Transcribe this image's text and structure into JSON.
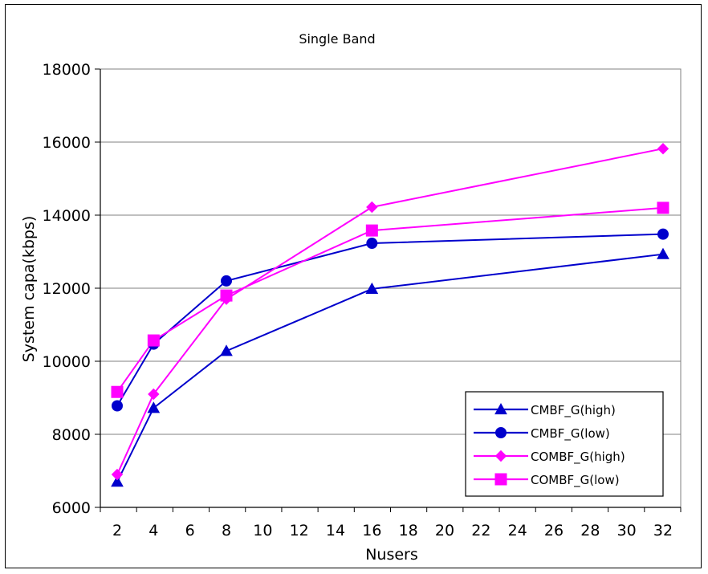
{
  "chart_data": {
    "type": "line",
    "title": "Single Band",
    "xlabel": "Nusers",
    "ylabel": "System capa(kbps)",
    "x": [
      2,
      4,
      8,
      16,
      32
    ],
    "xticks": [
      "2",
      "4",
      "6",
      "8",
      "10",
      "12",
      "14",
      "16",
      "18",
      "20",
      "22",
      "24",
      "26",
      "28",
      "30",
      "32"
    ],
    "yticks": [
      "6000",
      "8000",
      "10000",
      "12000",
      "14000",
      "16000",
      "18000"
    ],
    "xlim": [
      2,
      32
    ],
    "ylim": [
      6000,
      18000
    ],
    "grid": "horizontal",
    "legend_position": "bottom-right",
    "series": [
      {
        "name": "CMBF_G(high)",
        "color": "#0000cc",
        "marker": "triangle",
        "values": [
          6700,
          8720,
          10280,
          11980,
          12930
        ]
      },
      {
        "name": "CMBF_G(low)",
        "color": "#0000cc",
        "marker": "circle",
        "values": [
          8780,
          10470,
          12200,
          13230,
          13480
        ]
      },
      {
        "name": "COMBF_G(high)",
        "color": "#ff00ff",
        "marker": "diamond",
        "values": [
          6900,
          9100,
          11700,
          14220,
          15820
        ]
      },
      {
        "name": "COMBF_G(low)",
        "color": "#ff00ff",
        "marker": "square",
        "values": [
          9160,
          10570,
          11800,
          13580,
          14200
        ]
      }
    ]
  }
}
